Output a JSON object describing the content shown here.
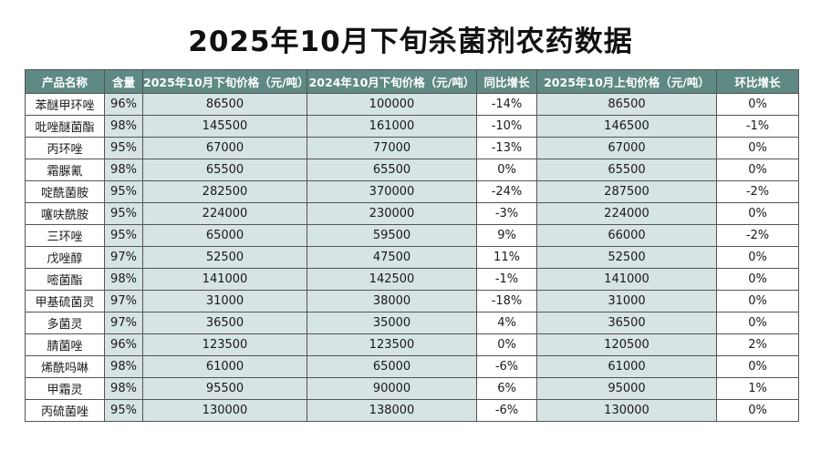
{
  "title": "2025年10月下旬杀菌剂农药数据",
  "table": {
    "headers": [
      "产品名称",
      "含量",
      "2025年10月下旬价格（元/吨）",
      "2024年10月下旬价格（元/吨）",
      "同比增长",
      "2025年10月上旬价格（元/吨）",
      "环比增长"
    ],
    "rows": [
      [
        "苯醚甲环唑",
        "96%",
        "86500",
        "100000",
        "-14%",
        "86500",
        "0%"
      ],
      [
        "吡唑醚菌酯",
        "98%",
        "145500",
        "161000",
        "-10%",
        "146500",
        "-1%"
      ],
      [
        "丙环唑",
        "95%",
        "67000",
        "77000",
        "-13%",
        "67000",
        "0%"
      ],
      [
        "霜脲氰",
        "98%",
        "65500",
        "65500",
        "0%",
        "65500",
        "0%"
      ],
      [
        "啶酰菌胺",
        "95%",
        "282500",
        "370000",
        "-24%",
        "287500",
        "-2%"
      ],
      [
        "噻呋酰胺",
        "95%",
        "224000",
        "230000",
        "-3%",
        "224000",
        "0%"
      ],
      [
        "三环唑",
        "95%",
        "65000",
        "59500",
        "9%",
        "66000",
        "-2%"
      ],
      [
        "戊唑醇",
        "97%",
        "52500",
        "47500",
        "11%",
        "52500",
        "0%"
      ],
      [
        "嘧菌酯",
        "98%",
        "141000",
        "142500",
        "-1%",
        "141000",
        "0%"
      ],
      [
        "甲基硫菌灵",
        "97%",
        "31000",
        "38000",
        "-18%",
        "31000",
        "0%"
      ],
      [
        "多菌灵",
        "97%",
        "36500",
        "35000",
        "4%",
        "36500",
        "0%"
      ],
      [
        "腈菌唑",
        "96%",
        "123500",
        "123500",
        "0%",
        "120500",
        "2%"
      ],
      [
        "烯酰吗啉",
        "98%",
        "61000",
        "65000",
        "-6%",
        "61000",
        "0%"
      ],
      [
        "甲霜灵",
        "98%",
        "95500",
        "90000",
        "6%",
        "95000",
        "1%"
      ],
      [
        "丙硫菌唑",
        "95%",
        "130000",
        "138000",
        "-6%",
        "130000",
        "0%"
      ]
    ]
  },
  "colors": {
    "header_bg": "#5f8a84",
    "shaded_cell": "#d6e4e3",
    "border": "#555555"
  }
}
